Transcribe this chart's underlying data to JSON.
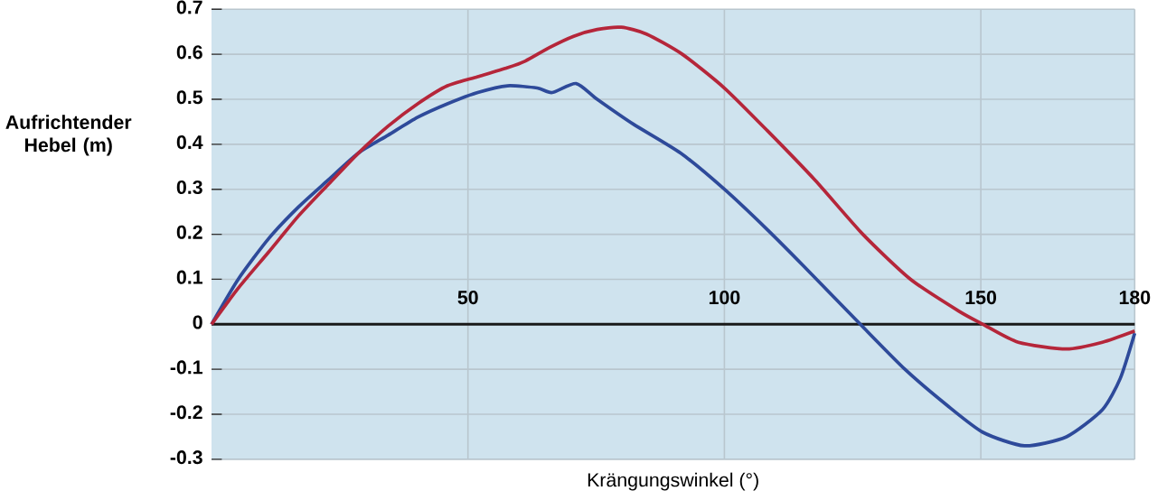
{
  "chart_data": {
    "type": "line",
    "xlabel": "Krängungswinkel (°)",
    "ylabel": "Aufrichtender Hebel (m)",
    "xlim": [
      0,
      180
    ],
    "ylim": [
      -0.3,
      0.7
    ],
    "xticks": [
      50,
      100,
      150,
      180
    ],
    "yticks": [
      -0.3,
      -0.2,
      -0.1,
      0,
      0.1,
      0.2,
      0.3,
      0.4,
      0.5,
      0.6,
      0.7
    ],
    "grid": true,
    "marker": "none",
    "line_style": "solid",
    "series": [
      {
        "color": "#2e4a9a",
        "x": [
          0,
          5.2,
          11.1,
          16.9,
          22.7,
          28.6,
          34.4,
          40.2,
          46,
          51.9,
          57.7,
          63.5,
          66.4,
          71.1,
          75.2,
          82.2,
          91.5,
          100,
          108.4,
          115.4,
          126.5,
          135.2,
          143.4,
          150.4,
          158.5,
          166.7,
          173.7,
          177.2,
          180
        ],
        "values": [
          0,
          0.1,
          0.19,
          0.26,
          0.32,
          0.38,
          0.42,
          0.46,
          0.49,
          0.515,
          0.53,
          0.525,
          0.515,
          0.535,
          0.5,
          0.445,
          0.38,
          0.3,
          0.21,
          0.13,
          0,
          -0.1,
          -0.18,
          -0.24,
          -0.27,
          -0.25,
          -0.19,
          -0.12,
          -0.02
        ]
      },
      {
        "color": "#b5263a",
        "x": [
          0,
          5.2,
          11.1,
          16.9,
          22.7,
          28.6,
          34.4,
          40.2,
          46,
          51.9,
          57.7,
          61.2,
          65.9,
          70.6,
          75.2,
          79.9,
          84.8,
          91.8,
          100,
          108.4,
          117.7,
          127,
          136.3,
          145.6,
          150.4,
          157.3,
          166.7,
          173.7,
          180
        ],
        "values": [
          0,
          0.08,
          0.16,
          0.24,
          0.31,
          0.38,
          0.44,
          0.49,
          0.53,
          0.55,
          0.57,
          0.585,
          0.615,
          0.64,
          0.655,
          0.66,
          0.645,
          0.6,
          0.525,
          0.43,
          0.32,
          0.2,
          0.1,
          0.03,
          0,
          -0.04,
          -0.055,
          -0.04,
          -0.015
        ]
      }
    ]
  }
}
